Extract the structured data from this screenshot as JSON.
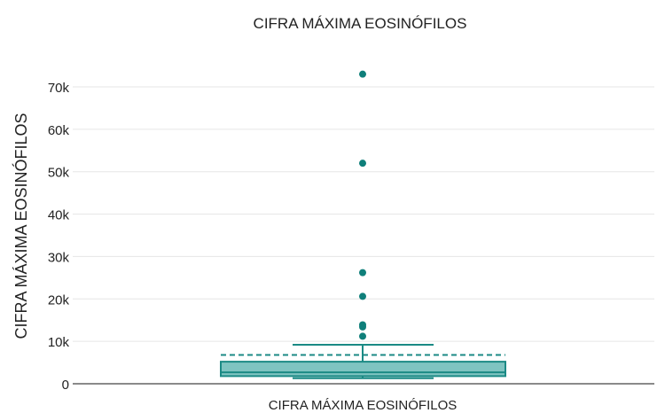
{
  "chart_data": {
    "type": "box",
    "title": "CIFRA MÁXIMA EOSINÓFILOS",
    "xlabel": "",
    "ylabel": "CIFRA MÁXIMA EOSINÓFILOS",
    "categories": [
      "CIFRA MÁXIMA EOSINÓFILOS"
    ],
    "ylim": [
      0,
      75000
    ],
    "yticks": [
      0,
      10000,
      20000,
      30000,
      40000,
      50000,
      60000,
      70000
    ],
    "ytick_labels": [
      "0",
      "10k",
      "20k",
      "30k",
      "40k",
      "50k",
      "60k",
      "70k"
    ],
    "grid": true,
    "legend": "none",
    "boxes": [
      {
        "category": "CIFRA MÁXIMA EOSINÓFILOS",
        "whisker_low": 1300,
        "q1": 1800,
        "median": 2700,
        "q3": 5200,
        "whisker_high": 9200,
        "mean": 6800,
        "outliers": [
          73000,
          52000,
          26200,
          20600,
          13900,
          13400,
          11200
        ]
      }
    ],
    "colors": {
      "box_fill": "#7fc4c1",
      "box_stroke": "#1b8a85",
      "outlier": "#0f7f7a",
      "grid": "#e6e6e6",
      "axis": "#444444"
    }
  }
}
